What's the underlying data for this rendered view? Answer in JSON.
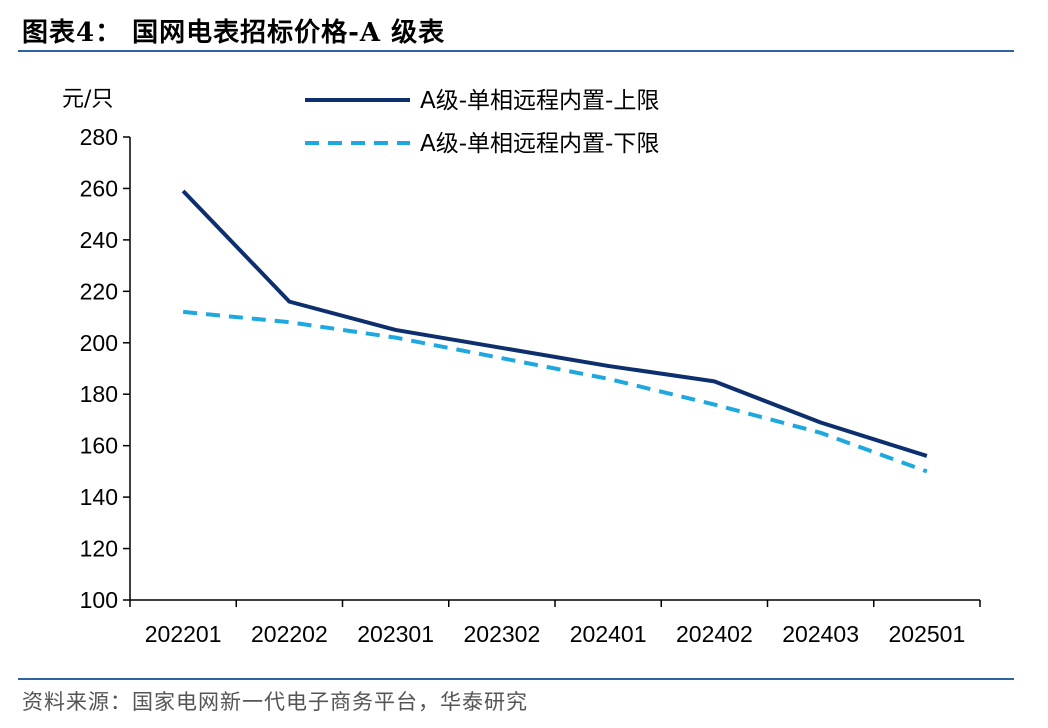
{
  "header": {
    "title": "图表4： 国网电表招标价格-A 级表"
  },
  "footer": {
    "source": "资料来源：国家电网新一代电子商务平台，华泰研究"
  },
  "chart_data": {
    "type": "line",
    "title": "",
    "xlabel": "",
    "ylabel": "元/只",
    "categories": [
      "202201",
      "202202",
      "202301",
      "202302",
      "202401",
      "202402",
      "202403",
      "202501"
    ],
    "ylim": [
      100,
      280
    ],
    "yticks": [
      100,
      120,
      140,
      160,
      180,
      200,
      220,
      240,
      260,
      280
    ],
    "grid": false,
    "legend_position": "top",
    "series": [
      {
        "name": "A级-单相远程内置-上限",
        "color": "#0d2f6e",
        "style": "solid",
        "values": [
          259,
          216,
          205,
          198,
          191,
          185,
          169,
          156
        ]
      },
      {
        "name": "A级-单相远程内置-下限",
        "color": "#1ea8e0",
        "style": "dashed",
        "values": [
          212,
          208,
          202,
          194,
          186,
          176,
          165,
          150
        ]
      }
    ]
  }
}
